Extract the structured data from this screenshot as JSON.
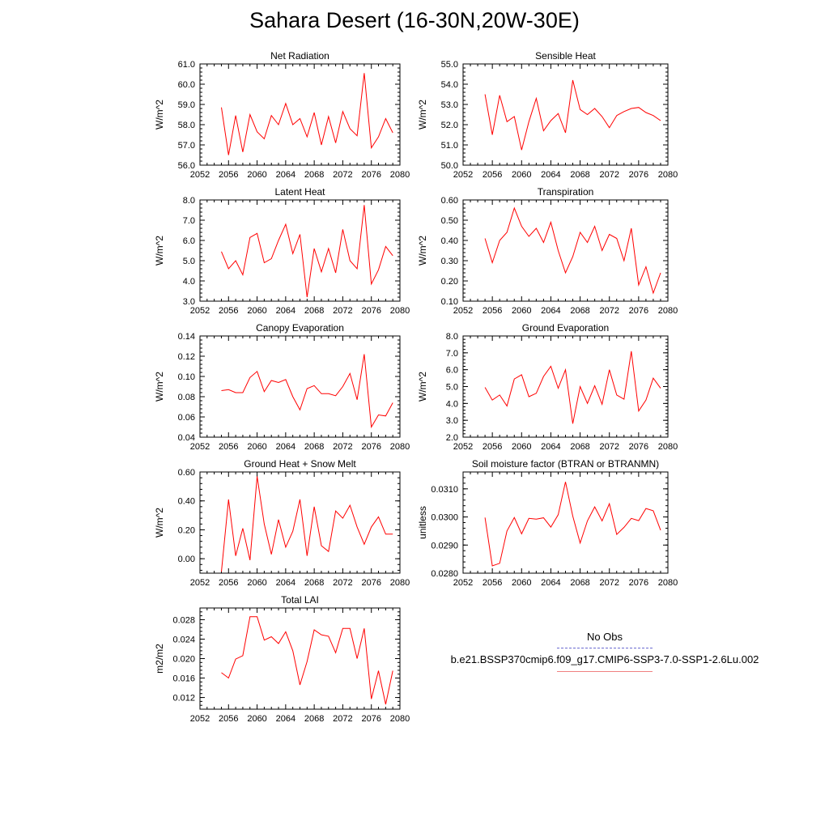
{
  "title": "Sahara Desert (16-30N,20W-30E)",
  "legend": {
    "obs_label": "No Obs",
    "case_label": "b.e21.BSSP370cmip6.f09_g17.CMIP6-SSP3-7.0-SSP1-2.6Lu.002",
    "obs_color": "#6b6bd0",
    "case_color": "#ff0000"
  },
  "chart_data": [
    {
      "type": "line",
      "title": "Net Radiation",
      "xlabel": "",
      "ylabel": "W/m^2",
      "xlim": [
        2052,
        2080
      ],
      "ylim": [
        56.0,
        61.0
      ],
      "xticks": [
        2052,
        2056,
        2060,
        2064,
        2068,
        2072,
        2076,
        2080
      ],
      "yticks": [
        56.0,
        57.0,
        58.0,
        59.0,
        60.0,
        61.0
      ],
      "ydecimals": 1,
      "series": [
        {
          "color": "#ff0000",
          "x": [
            2055,
            2056,
            2057,
            2058,
            2059,
            2060,
            2061,
            2062,
            2063,
            2064,
            2065,
            2066,
            2067,
            2068,
            2069,
            2070,
            2071,
            2072,
            2073,
            2074,
            2075,
            2076,
            2077,
            2078,
            2079
          ],
          "y": [
            58.85,
            56.5,
            58.45,
            56.65,
            58.5,
            57.65,
            57.3,
            58.45,
            58.0,
            59.05,
            58.0,
            58.3,
            57.4,
            58.6,
            57.0,
            58.4,
            57.1,
            58.65,
            57.8,
            57.45,
            60.55,
            56.85,
            57.4,
            58.3,
            57.6
          ]
        }
      ]
    },
    {
      "type": "line",
      "title": "Sensible Heat",
      "xlabel": "",
      "ylabel": "W/m^2",
      "xlim": [
        2052,
        2080
      ],
      "ylim": [
        50.0,
        55.0
      ],
      "xticks": [
        2052,
        2056,
        2060,
        2064,
        2068,
        2072,
        2076,
        2080
      ],
      "yticks": [
        50.0,
        51.0,
        52.0,
        53.0,
        54.0,
        55.0
      ],
      "ydecimals": 1,
      "series": [
        {
          "color": "#ff0000",
          "x": [
            2055,
            2056,
            2057,
            2058,
            2059,
            2060,
            2061,
            2062,
            2063,
            2064,
            2065,
            2066,
            2067,
            2068,
            2069,
            2070,
            2071,
            2072,
            2073,
            2074,
            2075,
            2076,
            2077,
            2078,
            2079
          ],
          "y": [
            53.5,
            51.5,
            53.45,
            52.15,
            52.4,
            50.75,
            52.15,
            53.3,
            51.7,
            52.2,
            52.55,
            51.6,
            54.2,
            52.75,
            52.5,
            52.8,
            52.4,
            51.85,
            52.45,
            52.65,
            52.8,
            52.85,
            52.6,
            52.45,
            52.2
          ]
        }
      ]
    },
    {
      "type": "line",
      "title": "Latent Heat",
      "xlabel": "",
      "ylabel": "W/m^2",
      "xlim": [
        2052,
        2080
      ],
      "ylim": [
        3.0,
        8.0
      ],
      "xticks": [
        2052,
        2056,
        2060,
        2064,
        2068,
        2072,
        2076,
        2080
      ],
      "yticks": [
        3.0,
        4.0,
        5.0,
        6.0,
        7.0,
        8.0
      ],
      "ydecimals": 1,
      "series": [
        {
          "color": "#ff0000",
          "x": [
            2055,
            2056,
            2057,
            2058,
            2059,
            2060,
            2061,
            2062,
            2063,
            2064,
            2065,
            2066,
            2067,
            2068,
            2069,
            2070,
            2071,
            2072,
            2073,
            2074,
            2075,
            2076,
            2077,
            2078,
            2079
          ],
          "y": [
            5.45,
            4.6,
            5.0,
            4.3,
            6.15,
            6.35,
            4.9,
            5.1,
            6.0,
            6.8,
            5.35,
            6.3,
            3.2,
            5.6,
            4.45,
            5.6,
            4.4,
            6.55,
            5.0,
            4.6,
            7.75,
            3.85,
            4.55,
            5.7,
            5.25
          ]
        }
      ]
    },
    {
      "type": "line",
      "title": "Transpiration",
      "xlabel": "",
      "ylabel": "W/m^2",
      "xlim": [
        2052,
        2080
      ],
      "ylim": [
        0.1,
        0.6
      ],
      "xticks": [
        2052,
        2056,
        2060,
        2064,
        2068,
        2072,
        2076,
        2080
      ],
      "yticks": [
        0.1,
        0.2,
        0.3,
        0.4,
        0.5,
        0.6
      ],
      "ydecimals": 2,
      "series": [
        {
          "color": "#ff0000",
          "x": [
            2055,
            2056,
            2057,
            2058,
            2059,
            2060,
            2061,
            2062,
            2063,
            2064,
            2065,
            2066,
            2067,
            2068,
            2069,
            2070,
            2071,
            2072,
            2073,
            2074,
            2075,
            2076,
            2077,
            2078,
            2079
          ],
          "y": [
            0.41,
            0.29,
            0.4,
            0.44,
            0.56,
            0.47,
            0.42,
            0.46,
            0.39,
            0.49,
            0.35,
            0.24,
            0.32,
            0.44,
            0.39,
            0.47,
            0.35,
            0.43,
            0.41,
            0.3,
            0.46,
            0.18,
            0.27,
            0.14,
            0.24
          ]
        }
      ]
    },
    {
      "type": "line",
      "title": "Canopy Evaporation",
      "xlabel": "",
      "ylabel": "W/m^2",
      "xlim": [
        2052,
        2080
      ],
      "ylim": [
        0.04,
        0.14
      ],
      "xticks": [
        2052,
        2056,
        2060,
        2064,
        2068,
        2072,
        2076,
        2080
      ],
      "yticks": [
        0.04,
        0.06,
        0.08,
        0.1,
        0.12,
        0.14
      ],
      "ydecimals": 2,
      "series": [
        {
          "color": "#ff0000",
          "x": [
            2055,
            2056,
            2057,
            2058,
            2059,
            2060,
            2061,
            2062,
            2063,
            2064,
            2065,
            2066,
            2067,
            2068,
            2069,
            2070,
            2071,
            2072,
            2073,
            2074,
            2075,
            2076,
            2077,
            2078,
            2079
          ],
          "y": [
            0.086,
            0.087,
            0.084,
            0.084,
            0.099,
            0.105,
            0.085,
            0.096,
            0.094,
            0.097,
            0.08,
            0.067,
            0.088,
            0.091,
            0.083,
            0.083,
            0.081,
            0.09,
            0.103,
            0.077,
            0.122,
            0.05,
            0.062,
            0.061,
            0.074
          ]
        }
      ]
    },
    {
      "type": "line",
      "title": "Ground Evaporation",
      "xlabel": "",
      "ylabel": "W/m^2",
      "xlim": [
        2052,
        2080
      ],
      "ylim": [
        2.0,
        8.0
      ],
      "xticks": [
        2052,
        2056,
        2060,
        2064,
        2068,
        2072,
        2076,
        2080
      ],
      "yticks": [
        2.0,
        3.0,
        4.0,
        5.0,
        6.0,
        7.0,
        8.0
      ],
      "ydecimals": 1,
      "series": [
        {
          "color": "#ff0000",
          "x": [
            2055,
            2056,
            2057,
            2058,
            2059,
            2060,
            2061,
            2062,
            2063,
            2064,
            2065,
            2066,
            2067,
            2068,
            2069,
            2070,
            2071,
            2072,
            2073,
            2074,
            2075,
            2076,
            2077,
            2078,
            2079
          ],
          "y": [
            4.95,
            4.2,
            4.5,
            3.85,
            5.45,
            5.7,
            4.4,
            4.6,
            5.6,
            6.2,
            4.9,
            6.0,
            2.8,
            5.0,
            4.0,
            5.05,
            3.95,
            6.0,
            4.5,
            4.25,
            7.1,
            3.55,
            4.2,
            5.5,
            4.9
          ]
        }
      ]
    },
    {
      "type": "line",
      "title": "Ground Heat + Snow Melt",
      "xlabel": "",
      "ylabel": "W/m^2",
      "xlim": [
        2052,
        2080
      ],
      "ylim": [
        -0.1,
        0.6
      ],
      "xticks": [
        2052,
        2056,
        2060,
        2064,
        2068,
        2072,
        2076,
        2080
      ],
      "yticks": [
        0.0,
        0.2,
        0.4,
        0.6
      ],
      "ydecimals": 2,
      "series": [
        {
          "color": "#ff0000",
          "x": [
            2055,
            2056,
            2057,
            2058,
            2059,
            2060,
            2061,
            2062,
            2063,
            2064,
            2065,
            2066,
            2067,
            2068,
            2069,
            2070,
            2071,
            2072,
            2073,
            2074,
            2075,
            2076,
            2077,
            2078,
            2079
          ],
          "y": [
            -0.09,
            0.41,
            0.02,
            0.21,
            -0.01,
            0.57,
            0.24,
            0.03,
            0.27,
            0.08,
            0.19,
            0.41,
            0.02,
            0.36,
            0.09,
            0.05,
            0.33,
            0.28,
            0.37,
            0.22,
            0.1,
            0.22,
            0.29,
            0.17,
            0.17
          ]
        }
      ]
    },
    {
      "type": "line",
      "title": "Soil moisture factor (BTRAN or BTRANMN)",
      "xlabel": "",
      "ylabel": "unitless",
      "xlim": [
        2052,
        2080
      ],
      "ylim": [
        0.028,
        0.0316
      ],
      "xticks": [
        2052,
        2056,
        2060,
        2064,
        2068,
        2072,
        2076,
        2080
      ],
      "yticks": [
        0.028,
        0.029,
        0.03,
        0.031
      ],
      "ydecimals": 4,
      "series": [
        {
          "color": "#ff0000",
          "x": [
            2055,
            2056,
            2057,
            2058,
            2059,
            2060,
            2061,
            2062,
            2063,
            2064,
            2065,
            2066,
            2067,
            2068,
            2069,
            2070,
            2071,
            2072,
            2073,
            2074,
            2075,
            2076,
            2077,
            2078,
            2079
          ],
          "y": [
            0.02998,
            0.02826,
            0.02835,
            0.0295,
            0.02998,
            0.0294,
            0.02995,
            0.02992,
            0.02997,
            0.02964,
            0.03008,
            0.03125,
            0.03003,
            0.02907,
            0.02986,
            0.03036,
            0.02986,
            0.03047,
            0.02938,
            0.02963,
            0.02995,
            0.02987,
            0.0303,
            0.03022,
            0.02953
          ]
        }
      ]
    },
    {
      "type": "line",
      "title": "Total LAI",
      "xlabel": "",
      "ylabel": "m2/m2",
      "xlim": [
        2052,
        2080
      ],
      "ylim": [
        0.0096,
        0.0304
      ],
      "xticks": [
        2052,
        2056,
        2060,
        2064,
        2068,
        2072,
        2076,
        2080
      ],
      "yticks": [
        0.012,
        0.016,
        0.02,
        0.024,
        0.028
      ],
      "ydecimals": 3,
      "series": [
        {
          "color": "#ff0000",
          "x": [
            2055,
            2056,
            2057,
            2058,
            2059,
            2060,
            2061,
            2062,
            2063,
            2064,
            2065,
            2066,
            2067,
            2068,
            2069,
            2070,
            2071,
            2072,
            2073,
            2074,
            2075,
            2076,
            2077,
            2078,
            2079
          ],
          "y": [
            0.0171,
            0.016,
            0.0199,
            0.0206,
            0.0286,
            0.0286,
            0.0238,
            0.0245,
            0.0231,
            0.0255,
            0.0216,
            0.0146,
            0.0194,
            0.0259,
            0.0249,
            0.0246,
            0.0212,
            0.0262,
            0.0262,
            0.02,
            0.0262,
            0.0117,
            0.0175,
            0.0106,
            0.0175
          ]
        }
      ]
    }
  ]
}
